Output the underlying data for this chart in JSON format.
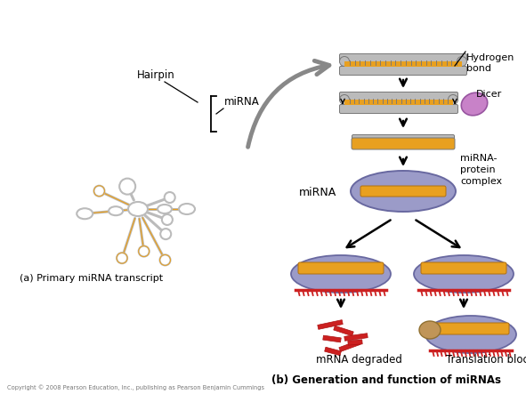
{
  "background_color": "#ffffff",
  "title_a": "(a) Primary miRNA transcript",
  "title_b": "(b) Generation and function of miRNAs",
  "label_hairpin": "Hairpin",
  "label_mirna": "miRNA",
  "label_mirna_protein": "miRNA-\nprotein\ncomplex",
  "label_hydrogen": "Hydrogen\nbond",
  "label_dicer": "Dicer",
  "label_mrna_degraded": "mRNA degraded",
  "label_translation_blocked": "Translation blocked",
  "label_mirna_left": "miRNA",
  "copyright": "Copyright © 2008 Pearson Education, Inc., publishing as Pearson Benjamin Cummings",
  "color_orange": "#E8A020",
  "color_gray": "#BBBBBB",
  "color_dark_gray": "#777777",
  "color_mid_gray": "#999999",
  "color_purple_light": "#9B9BC8",
  "color_purple_dark": "#6868A0",
  "color_red": "#CC2020",
  "color_tan": "#C09558",
  "color_pink": "#C882C8",
  "color_black": "#111111",
  "color_arrow_gray": "#888888"
}
